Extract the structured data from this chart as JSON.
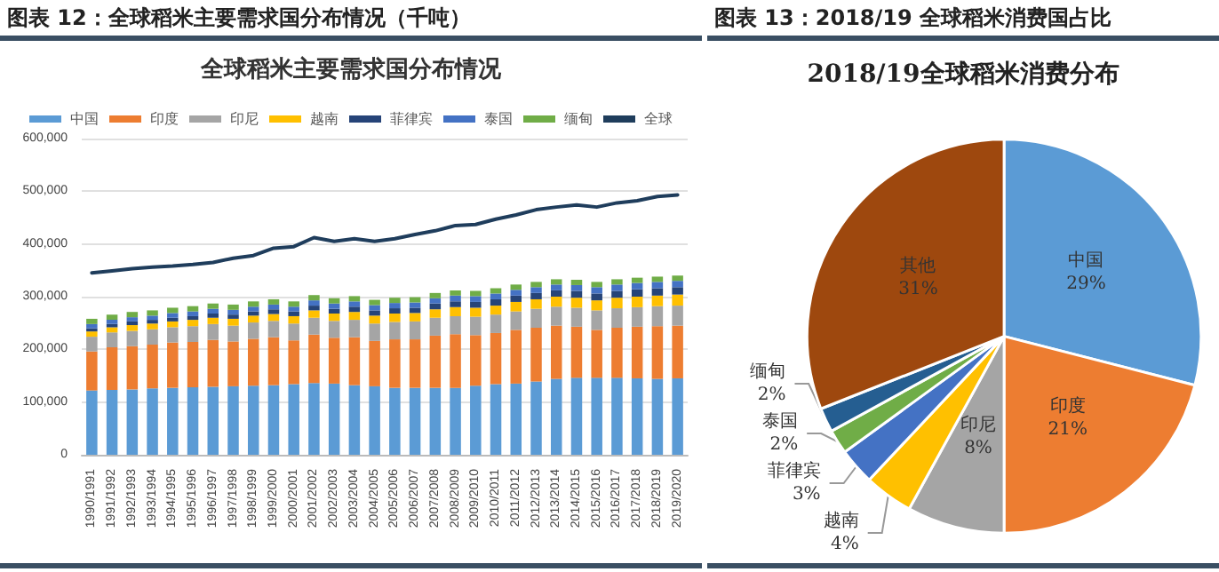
{
  "chart_data": [
    {
      "type": "bar",
      "title": "图表 12：全球稻米主要需求国分布情况（千吨）",
      "subtitle": "全球稻米主要需求国分布情况",
      "stacked": true,
      "grid": "y",
      "legend": "top",
      "categories": [
        "1990/1991",
        "1991/1992",
        "1992/1993",
        "1993/1994",
        "1994/1995",
        "1995/1996",
        "1996/1997",
        "1997/1998",
        "1998/1999",
        "1999/2000",
        "2000/2001",
        "2001/2002",
        "2002/2003",
        "2003/2004",
        "2004/2005",
        "2005/2006",
        "2006/2007",
        "2007/2008",
        "2008/2009",
        "2009/2010",
        "2010/2011",
        "2011/2012",
        "2012/2013",
        "2013/2014",
        "2014/2015",
        "2015/2016",
        "2016/2017",
        "2017/2018",
        "2018/2019",
        "2019/2020"
      ],
      "ylim": [
        0,
        600000
      ],
      "yticks": [
        0,
        {
          "value": 100000,
          "label": "100,000"
        },
        {
          "value": 200000,
          "label": "200,000"
        },
        {
          "value": 300000,
          "label": "300,000"
        },
        {
          "value": 400000,
          "label": "400,000"
        },
        {
          "value": 500000,
          "label": "500,000"
        },
        {
          "value": 600000,
          "label": "600,000"
        }
      ],
      "series": [
        {
          "name": "中国",
          "color": "#5b9bd5",
          "values": [
            122000,
            123000,
            124000,
            126000,
            127000,
            128000,
            129000,
            130000,
            131000,
            132000,
            134000,
            136000,
            135000,
            132000,
            130000,
            127000,
            127000,
            127000,
            127000,
            131000,
            134000,
            135000,
            139000,
            144000,
            146000,
            146000,
            146000,
            145000,
            144000,
            145000
          ]
        },
        {
          "name": "印度",
          "color": "#ed7d31",
          "values": [
            74000,
            81000,
            82000,
            83000,
            86000,
            86000,
            89000,
            85000,
            89000,
            91000,
            83000,
            92000,
            87000,
            91000,
            86000,
            92000,
            92000,
            99000,
            102000,
            96000,
            97000,
            102000,
            102000,
            101000,
            97000,
            91000,
            95000,
            98000,
            100000,
            100000
          ]
        },
        {
          "name": "印尼",
          "color": "#a5a5a5",
          "values": [
            28000,
            28000,
            29000,
            29000,
            29000,
            30000,
            30000,
            30000,
            31000,
            31000,
            32000,
            32000,
            32000,
            33000,
            33000,
            33000,
            34000,
            34000,
            34000,
            35000,
            35000,
            35000,
            36000,
            36000,
            36000,
            37000,
            37000,
            37000,
            38000,
            38000
          ]
        },
        {
          "name": "越南",
          "color": "#ffc000",
          "values": [
            10000,
            10000,
            11000,
            11000,
            11000,
            12000,
            12000,
            13000,
            13000,
            13000,
            14000,
            14000,
            14000,
            15000,
            15000,
            16000,
            16000,
            16000,
            17000,
            17000,
            17000,
            18000,
            18000,
            19000,
            19000,
            19000,
            20000,
            20000,
            20000,
            21000
          ]
        },
        {
          "name": "菲律宾",
          "color": "#264478",
          "values": [
            6000,
            6000,
            7000,
            7000,
            7000,
            7000,
            8000,
            8000,
            8000,
            9000,
            9000,
            9000,
            9000,
            10000,
            10000,
            10000,
            10000,
            11000,
            11000,
            11000,
            12000,
            12000,
            12000,
            12000,
            13000,
            13000,
            13000,
            14000,
            14000,
            14000
          ]
        },
        {
          "name": "泰国",
          "color": "#4472c4",
          "values": [
            8000,
            8000,
            8000,
            8000,
            9000,
            9000,
            9000,
            9000,
            9000,
            9000,
            9000,
            10000,
            10000,
            10000,
            10000,
            10000,
            10000,
            10000,
            11000,
            11000,
            11000,
            11000,
            11000,
            11000,
            11000,
            12000,
            12000,
            12000,
            12000,
            12000
          ]
        },
        {
          "name": "缅甸",
          "color": "#70ad47",
          "values": [
            10000,
            10000,
            10000,
            10000,
            10000,
            10000,
            10000,
            10000,
            10000,
            10000,
            10000,
            10000,
            10000,
            10000,
            10000,
            10000,
            10000,
            10000,
            10000,
            10000,
            10000,
            10000,
            10000,
            10000,
            10000,
            10000,
            10000,
            10000,
            10000,
            10000
          ]
        },
        {
          "name": "全球",
          "type": "line",
          "marker": "none",
          "color": "#1f3d5c",
          "values": [
            345000,
            349000,
            353000,
            356000,
            358000,
            361000,
            365000,
            373000,
            378000,
            392000,
            395000,
            412000,
            405000,
            410000,
            405000,
            410000,
            418000,
            425000,
            435000,
            437000,
            447000,
            455000,
            465000,
            470000,
            474000,
            470000,
            478000,
            482000,
            490000,
            493000
          ]
        }
      ]
    },
    {
      "type": "pie",
      "title": "图表 13：2018/19 全球稻米消费国占比",
      "subtitle": "2018/19全球稻米消费分布",
      "categories": [
        "中国",
        "印度",
        "印尼",
        "越南",
        "菲律宾",
        "泰国",
        "缅甸",
        "其他"
      ],
      "values": [
        29,
        21,
        8,
        4,
        3,
        2,
        2,
        31
      ],
      "value_labels": [
        "29%",
        "21%",
        "8%",
        "4%",
        "3%",
        "2%",
        "2%",
        "31%"
      ],
      "colors": [
        "#5b9bd5",
        "#ed7d31",
        "#a5a5a5",
        "#ffc000",
        "#4472c4",
        "#70ad47",
        "#255e91",
        "#9e480e"
      ]
    }
  ]
}
